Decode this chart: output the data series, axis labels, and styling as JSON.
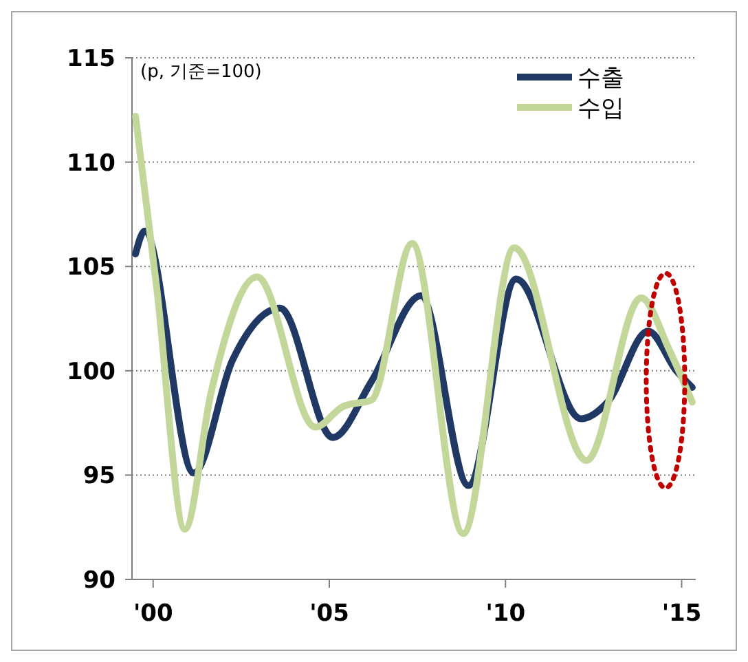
{
  "chart_data": {
    "type": "line",
    "annotations": [
      "(p, 기준=100)"
    ],
    "xlim": [
      1999.4,
      2015.4
    ],
    "xticks": [
      {
        "value": 2000,
        "label": "'00"
      },
      {
        "value": 2005,
        "label": "'05"
      },
      {
        "value": 2010,
        "label": "'10"
      },
      {
        "value": 2015,
        "label": "'15"
      }
    ],
    "ylim": [
      90,
      115
    ],
    "yticks": [
      90,
      95,
      100,
      105,
      110,
      115
    ],
    "grid": "y",
    "legend": "top right",
    "line_style": "solid",
    "marker": "none",
    "series": [
      {
        "name": "수출",
        "color": "#1f3864",
        "x": [
          1999.5,
          1999.76,
          2001.15,
          2002.25,
          2003.6,
          2005.1,
          2006.2,
          2007.6,
          2008.95,
          2010.3,
          2012.15,
          2012.9,
          2014.05,
          2014.85,
          2015.3
        ],
        "values": [
          105.6,
          106.7,
          95.1,
          100.5,
          103,
          96.8,
          99.5,
          103.6,
          94.5,
          104.4,
          97.7,
          98.5,
          101.9,
          100,
          99.2
        ]
      },
      {
        "name": "수입",
        "color": "#c4d79b",
        "x": [
          1999.5,
          2000.1,
          2000.9,
          2001.65,
          2002.95,
          2004.6,
          2005.4,
          2006.2,
          2007.35,
          2008.8,
          2010.25,
          2012.3,
          2013.85,
          2014.65,
          2015.3
        ],
        "values": [
          112.2,
          104,
          92.4,
          99,
          104.5,
          97.3,
          98.3,
          98.6,
          106.1,
          92.2,
          105.9,
          95.7,
          103.5,
          101,
          98.5
        ]
      }
    ]
  }
}
